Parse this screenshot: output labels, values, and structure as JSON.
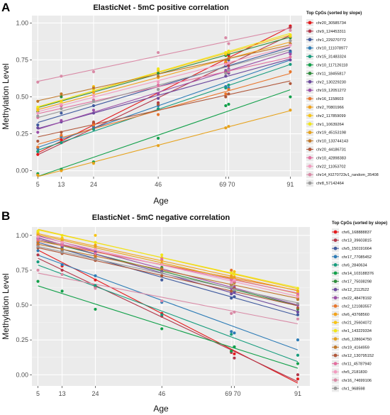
{
  "chart_data": [
    {
      "panel_label": "A",
      "type": "scatter",
      "title": "ElasticNet - 5mC positive correlation",
      "xlabel": "Age",
      "ylabel": "Methylation Level",
      "x_ticks": [
        "5",
        "13",
        "24",
        "46",
        "69",
        "70",
        "91"
      ],
      "y_ticks": [
        "0.00",
        "0.25",
        "0.50",
        "0.75",
        "1.00"
      ],
      "xlim": [
        3,
        95
      ],
      "ylim": [
        -0.04,
        1.05
      ],
      "grid": true,
      "legend_title": "Top CpGs (sorted by slope)",
      "legend_position": "right",
      "series": [
        {
          "name": "chr20_30585734",
          "color": "#e41a1c",
          "x": [
            5,
            13,
            24,
            46,
            69,
            70,
            91
          ],
          "y": [
            0.11,
            0.21,
            0.32,
            0.52,
            0.73,
            0.78,
            0.98
          ]
        },
        {
          "name": "chr9_124453311",
          "color": "#b2374a",
          "x": [
            5,
            13,
            24,
            46,
            69,
            70,
            91
          ],
          "y": [
            0.13,
            0.19,
            0.29,
            0.46,
            0.67,
            0.71,
            0.97
          ]
        },
        {
          "name": "chr1_229270772",
          "color": "#3f5a9e",
          "x": [
            5,
            13,
            24,
            46,
            69,
            70,
            91
          ],
          "y": [
            0.31,
            0.39,
            0.44,
            0.55,
            0.71,
            0.75,
            0.81
          ]
        },
        {
          "name": "chr10_111078977",
          "color": "#2c7bb6",
          "x": [
            5,
            13,
            24,
            46,
            69,
            70,
            91
          ],
          "y": [
            0.15,
            0.23,
            0.3,
            0.44,
            0.57,
            0.56,
            0.8
          ]
        },
        {
          "name": "chr15_31483324",
          "color": "#179c7d",
          "x": [
            5,
            13,
            24,
            46,
            69,
            70,
            91
          ],
          "y": [
            0.13,
            0.19,
            0.28,
            0.42,
            0.56,
            0.58,
            0.72
          ]
        },
        {
          "name": "chr10_117126118",
          "color": "#12a04a",
          "x": [
            5,
            13,
            24,
            46,
            69,
            70,
            91
          ],
          "y": [
            -0.02,
            0.01,
            0.06,
            0.22,
            0.44,
            0.45,
            0.5
          ]
        },
        {
          "name": "chr11_18455817",
          "color": "#2f8d3c",
          "x": [
            5,
            13,
            24,
            46,
            69,
            70,
            91
          ],
          "y": [
            0.4,
            0.5,
            0.53,
            0.66,
            0.78,
            0.79,
            0.9
          ]
        },
        {
          "name": "chr2_130229230",
          "color": "#6c4a9e",
          "x": [
            5,
            13,
            24,
            46,
            69,
            70,
            91
          ],
          "y": [
            0.29,
            0.33,
            0.39,
            0.49,
            0.64,
            0.66,
            0.75
          ]
        },
        {
          "name": "chr19_12051272",
          "color": "#9c4fa8",
          "x": [
            5,
            13,
            24,
            46,
            69,
            70,
            91
          ],
          "y": [
            0.26,
            0.34,
            0.41,
            0.52,
            0.68,
            0.69,
            0.79
          ]
        },
        {
          "name": "chr16_1158603",
          "color": "#e8762c",
          "x": [
            5,
            13,
            24,
            46,
            69,
            70,
            91
          ],
          "y": [
            0.16,
            0.24,
            0.31,
            0.38,
            0.52,
            0.55,
            0.67
          ]
        },
        {
          "name": "chr2_70801966",
          "color": "#f2a21b",
          "x": [
            5,
            13,
            24,
            46,
            69,
            70,
            91
          ],
          "y": [
            0.42,
            0.44,
            0.53,
            0.63,
            0.74,
            0.76,
            0.88
          ]
        },
        {
          "name": "chr2_117859099",
          "color": "#f7c416",
          "x": [
            5,
            13,
            24,
            46,
            69,
            70,
            91
          ],
          "y": [
            0.41,
            0.47,
            0.57,
            0.68,
            0.79,
            0.8,
            0.91
          ]
        },
        {
          "name": "chr1_10639264",
          "color": "#f0e619",
          "x": [
            5,
            13,
            24,
            46,
            69,
            70,
            91
          ],
          "y": [
            0.43,
            0.46,
            0.55,
            0.69,
            0.8,
            0.81,
            0.92
          ]
        },
        {
          "name": "chr19_45153198",
          "color": "#e6a21c",
          "x": [
            5,
            13,
            24,
            46,
            69,
            70,
            91
          ],
          "y": [
            -0.03,
            0.0,
            0.05,
            0.17,
            0.29,
            0.3,
            0.41
          ]
        },
        {
          "name": "chr10_133744143",
          "color": "#c0782a",
          "x": [
            5,
            13,
            24,
            46,
            69,
            70,
            91
          ],
          "y": [
            0.47,
            0.52,
            0.56,
            0.64,
            0.75,
            0.76,
            0.86
          ]
        },
        {
          "name": "chr20_44186731",
          "color": "#b0573a",
          "x": [
            5,
            13,
            24,
            46,
            69,
            70,
            91
          ],
          "y": [
            0.2,
            0.26,
            0.33,
            0.45,
            0.5,
            0.52,
            0.59
          ]
        },
        {
          "name": "chr10_42898383",
          "color": "#e26f9f",
          "x": [
            5,
            13,
            24,
            46,
            69,
            70,
            91
          ],
          "y": [
            0.36,
            0.44,
            0.48,
            0.58,
            0.66,
            0.67,
            0.77
          ]
        },
        {
          "name": "chr22_11053702",
          "color": "#f29cc0",
          "x": [
            5,
            13,
            24,
            46,
            69,
            70,
            91
          ],
          "y": [
            0.39,
            0.45,
            0.51,
            0.6,
            0.72,
            0.73,
            0.85
          ]
        },
        {
          "name": "chr14_KI270723v1_random_35408",
          "color": "#d98aa6",
          "x": [
            5,
            13,
            24,
            46,
            69,
            70,
            91
          ],
          "y": [
            0.6,
            0.64,
            0.67,
            0.8,
            0.9,
            0.86,
            0.95
          ]
        },
        {
          "name": "chr8_57142464",
          "color": "#9a9a9a",
          "x": [
            5,
            13,
            24,
            46,
            69,
            70,
            91
          ],
          "y": [
            0.37,
            0.42,
            0.47,
            0.55,
            0.66,
            0.68,
            0.88
          ]
        }
      ]
    },
    {
      "panel_label": "B",
      "type": "scatter",
      "title": "ElasticNet - 5mC negative correlation",
      "xlabel": "Age",
      "ylabel": "Methylation Level",
      "x_ticks": [
        "5",
        "13",
        "24",
        "46",
        "69",
        "70",
        "91"
      ],
      "y_ticks": [
        "0.00",
        "0.25",
        "0.50",
        "0.75",
        "1.00"
      ],
      "xlim": [
        3,
        95
      ],
      "ylim": [
        -0.08,
        1.06
      ],
      "grid": true,
      "legend_title": "Top CpGs (sorted by slope)",
      "legend_position": "right",
      "series": [
        {
          "name": "chr6_168888837",
          "color": "#e41a1c",
          "x": [
            5,
            13,
            24,
            46,
            69,
            70,
            91
          ],
          "y": [
            0.93,
            0.78,
            0.68,
            0.44,
            0.17,
            0.15,
            -0.03
          ]
        },
        {
          "name": "chr13_39603815",
          "color": "#b2374a",
          "x": [
            5,
            13,
            24,
            46,
            69,
            70,
            91
          ],
          "y": [
            0.86,
            0.75,
            0.63,
            0.42,
            0.16,
            0.12,
            0.0
          ]
        },
        {
          "name": "chr5_150191664",
          "color": "#3f5a9e",
          "x": [
            5,
            13,
            24,
            46,
            69,
            70,
            91
          ],
          "y": [
            0.95,
            0.89,
            0.86,
            0.68,
            0.55,
            0.56,
            0.43
          ]
        },
        {
          "name": "chr17_77085452",
          "color": "#2c7bb6",
          "x": [
            5,
            13,
            24,
            46,
            69,
            70,
            91
          ],
          "y": [
            0.89,
            0.79,
            0.71,
            0.52,
            0.31,
            0.3,
            0.25
          ]
        },
        {
          "name": "chr6_2840634",
          "color": "#179c7d",
          "x": [
            5,
            13,
            24,
            46,
            69,
            70,
            91
          ],
          "y": [
            0.81,
            0.72,
            0.64,
            0.43,
            0.29,
            0.2,
            0.14
          ]
        },
        {
          "name": "chr14_103188376",
          "color": "#12a04a",
          "x": [
            5,
            13,
            24,
            46,
            69,
            70,
            91
          ],
          "y": [
            0.67,
            0.6,
            0.47,
            0.33,
            0.17,
            0.2,
            0.08
          ]
        },
        {
          "name": "chr17_75038298",
          "color": "#2f8d3c",
          "x": [
            5,
            13,
            24,
            46,
            69,
            70,
            91
          ],
          "y": [
            0.97,
            0.91,
            0.86,
            0.77,
            0.65,
            0.6,
            0.47
          ]
        },
        {
          "name": "chr12_2112522",
          "color": "#6c4a9e",
          "x": [
            5,
            13,
            24,
            46,
            69,
            70,
            91
          ],
          "y": [
            0.98,
            0.92,
            0.88,
            0.74,
            0.58,
            0.59,
            0.45
          ]
        },
        {
          "name": "chr22_48478192",
          "color": "#9c4fa8",
          "x": [
            5,
            13,
            24,
            46,
            69,
            70,
            91
          ],
          "y": [
            1.0,
            0.94,
            0.9,
            0.76,
            0.62,
            0.63,
            0.5
          ]
        },
        {
          "name": "chr2_121083557",
          "color": "#e8762c",
          "x": [
            5,
            13,
            24,
            46,
            69,
            70,
            91
          ],
          "y": [
            0.96,
            0.93,
            0.85,
            0.79,
            0.75,
            0.72,
            0.55
          ]
        },
        {
          "name": "chr6_43768560",
          "color": "#f2a21b",
          "x": [
            5,
            13,
            24,
            46,
            69,
            70,
            91
          ],
          "y": [
            1.01,
            0.97,
            0.93,
            0.82,
            0.71,
            0.7,
            0.6
          ]
        },
        {
          "name": "chr21_25604072",
          "color": "#f7c416",
          "x": [
            5,
            13,
            24,
            46,
            69,
            70,
            91
          ],
          "y": [
            1.02,
            0.98,
            1.0,
            0.84,
            0.73,
            0.74,
            0.59
          ]
        },
        {
          "name": "chr1_143229334",
          "color": "#f0e619",
          "x": [
            5,
            13,
            24,
            46,
            69,
            70,
            91
          ],
          "y": [
            1.03,
            1.0,
            0.95,
            0.86,
            0.73,
            0.72,
            0.62
          ]
        },
        {
          "name": "chr6_128604750",
          "color": "#e6a21c",
          "x": [
            5,
            13,
            24,
            46,
            69,
            70,
            91
          ],
          "y": [
            1.0,
            0.96,
            0.92,
            0.8,
            0.7,
            0.69,
            0.57
          ]
        },
        {
          "name": "chr19_4164959",
          "color": "#c0782a",
          "x": [
            5,
            13,
            24,
            46,
            69,
            70,
            91
          ],
          "y": [
            0.94,
            0.9,
            0.84,
            0.76,
            0.64,
            0.66,
            0.54
          ]
        },
        {
          "name": "chr12_130795152",
          "color": "#b0573a",
          "x": [
            5,
            13,
            24,
            46,
            69,
            70,
            91
          ],
          "y": [
            0.91,
            0.87,
            0.82,
            0.71,
            0.6,
            0.62,
            0.48
          ]
        },
        {
          "name": "chr11_45787940",
          "color": "#e26f9f",
          "x": [
            5,
            13,
            24,
            46,
            69,
            70,
            91
          ],
          "y": [
            0.97,
            0.93,
            0.87,
            0.83,
            0.68,
            0.67,
            0.58
          ]
        },
        {
          "name": "chr5_2181830",
          "color": "#f29cc0",
          "x": [
            5,
            13,
            24,
            46,
            69,
            70,
            91
          ],
          "y": [
            0.99,
            0.95,
            0.9,
            0.79,
            0.66,
            0.68,
            0.56
          ]
        },
        {
          "name": "chr16_74699106",
          "color": "#d98aa6",
          "x": [
            5,
            13,
            24,
            46,
            69,
            70,
            91
          ],
          "y": [
            0.75,
            0.72,
            0.62,
            0.53,
            0.44,
            0.45,
            0.4
          ]
        },
        {
          "name": "chr1_968598",
          "color": "#9a9a9a",
          "x": [
            5,
            13,
            24,
            46,
            69,
            70,
            91
          ],
          "y": [
            0.92,
            0.88,
            0.83,
            0.73,
            0.63,
            0.61,
            0.51
          ]
        }
      ]
    }
  ]
}
